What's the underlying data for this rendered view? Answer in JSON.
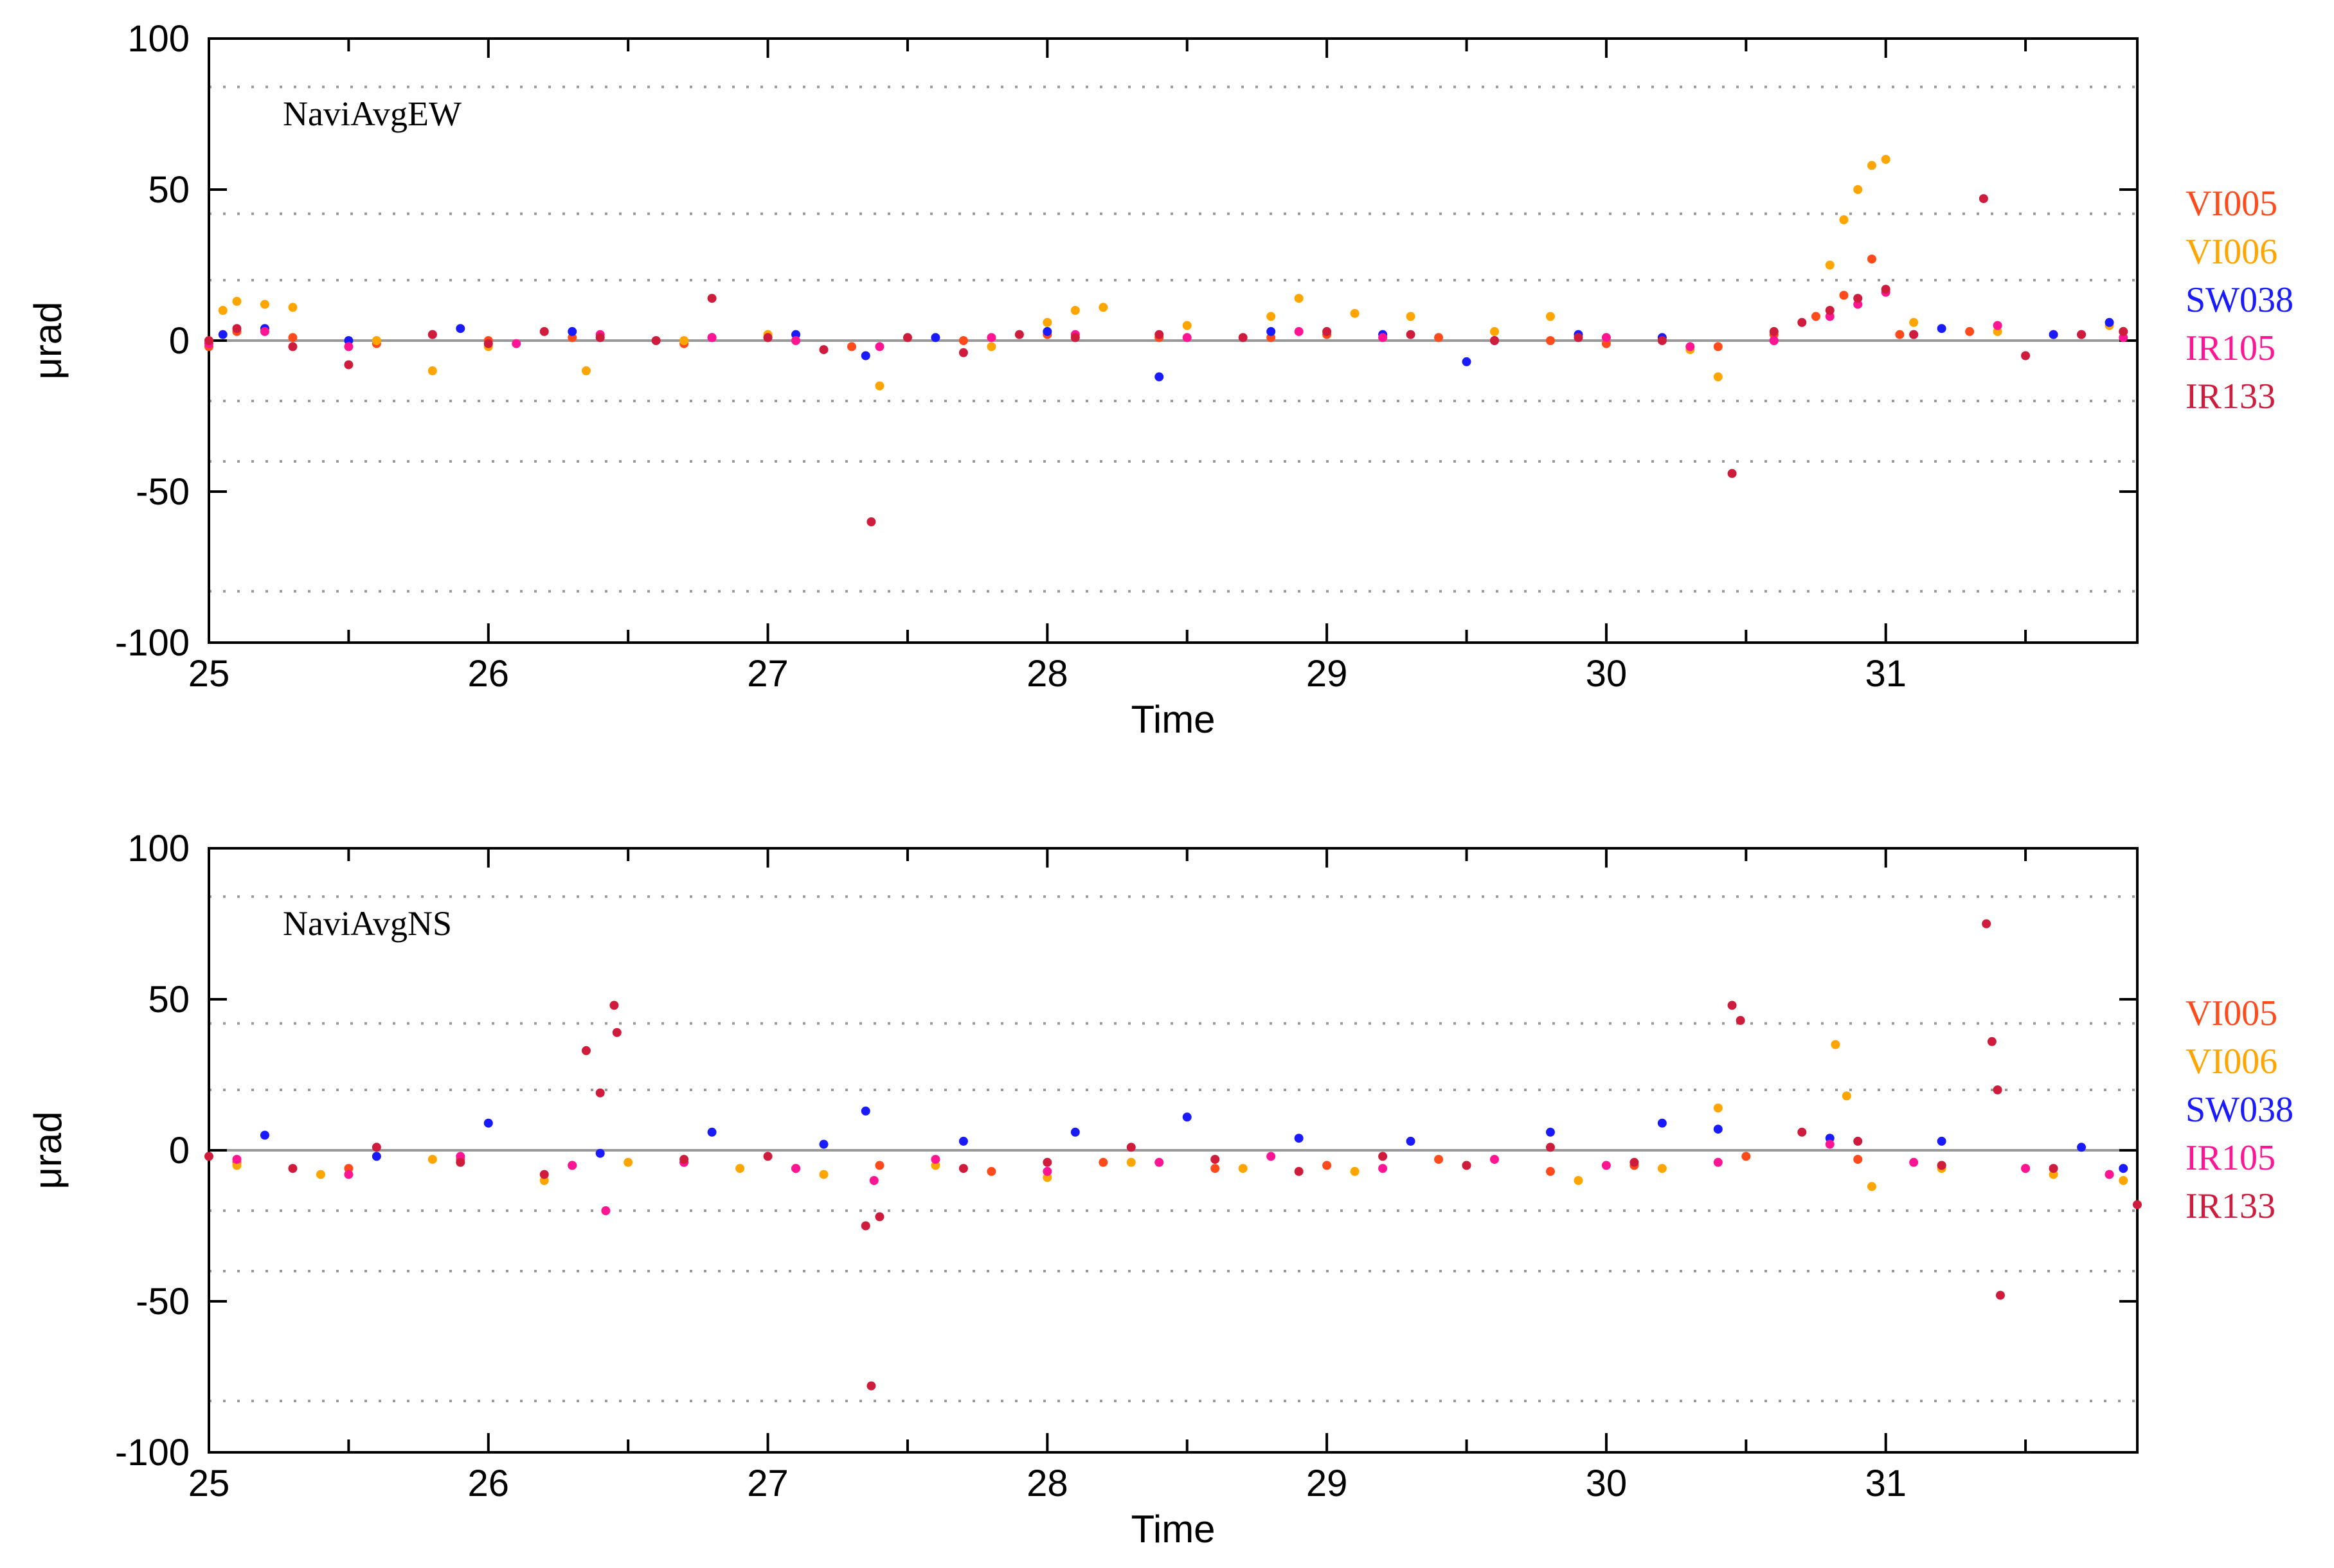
{
  "colors": {
    "VI005": "#ff4a1c",
    "VI006": "#ffa500",
    "SW038": "#1a1aff",
    "IR105": "#ff1493",
    "IR133": "#d01c3c",
    "zero_line": "#999999",
    "grid": "#999999"
  },
  "chart_data": [
    {
      "type": "scatter",
      "title": "NaviAvgEW",
      "xlabel": "Time",
      "ylabel": "μrad",
      "xlim": [
        25,
        31.9
      ],
      "ylim": [
        -100,
        100
      ],
      "xticks": [
        "25",
        "26",
        "27",
        "28",
        "29",
        "30",
        "31"
      ],
      "yticks": [
        "100",
        "50",
        "0",
        "-50",
        "-100"
      ],
      "grid": "dotted horizontal",
      "legend": [
        "VI005",
        "VI006",
        "SW038",
        "IR105",
        "IR133"
      ],
      "legend_position": "right",
      "series": [
        {
          "name": "VI005",
          "x": [
            25.0,
            25.1,
            25.3,
            25.6,
            26.0,
            26.3,
            26.7,
            27.0,
            27.3,
            27.7,
            28.0,
            28.4,
            28.8,
            29.0,
            29.4,
            29.8,
            30.0,
            30.4,
            30.6,
            30.75,
            30.85,
            30.95,
            31.05,
            31.3,
            31.6,
            31.85
          ],
          "y": [
            -2,
            3,
            1,
            -1,
            0,
            1,
            -1,
            1,
            -2,
            0,
            2,
            1,
            1,
            2,
            1,
            0,
            -1,
            -2,
            2,
            8,
            15,
            27,
            2,
            3,
            2,
            3
          ]
        },
        {
          "name": "VI006",
          "x": [
            25.05,
            25.1,
            25.2,
            25.3,
            25.6,
            25.8,
            26.0,
            26.35,
            26.7,
            27.0,
            27.4,
            27.8,
            28.0,
            28.1,
            28.2,
            28.5,
            28.8,
            28.9,
            29.1,
            29.3,
            29.6,
            29.8,
            30.0,
            30.3,
            30.4,
            30.8,
            30.85,
            30.9,
            30.95,
            31.0,
            31.1,
            31.4,
            31.8
          ],
          "y": [
            10,
            13,
            12,
            11,
            0,
            -10,
            -2,
            -10,
            0,
            2,
            -15,
            -2,
            6,
            10,
            11,
            5,
            8,
            14,
            9,
            8,
            3,
            8,
            1,
            -3,
            -12,
            25,
            40,
            50,
            58,
            60,
            6,
            3,
            5
          ]
        },
        {
          "name": "SW038",
          "x": [
            25.05,
            25.2,
            25.5,
            25.9,
            26.3,
            26.8,
            27.1,
            27.35,
            27.6,
            28.0,
            28.4,
            28.8,
            29.2,
            29.5,
            29.9,
            30.2,
            30.6,
            31.2,
            31.6,
            31.8
          ],
          "y": [
            2,
            4,
            0,
            4,
            3,
            1,
            2,
            -5,
            1,
            3,
            -12,
            3,
            2,
            -7,
            2,
            1,
            0,
            4,
            2,
            6
          ]
        },
        {
          "name": "IR105",
          "x": [
            25.0,
            25.2,
            25.5,
            25.8,
            26.1,
            26.4,
            26.8,
            27.1,
            27.4,
            27.8,
            28.1,
            28.5,
            28.9,
            29.2,
            29.6,
            30.0,
            30.3,
            30.6,
            30.8,
            30.9,
            31.0,
            31.1,
            31.4,
            31.7,
            31.85
          ],
          "y": [
            -1,
            3,
            -2,
            2,
            -1,
            2,
            1,
            0,
            -2,
            1,
            2,
            1,
            3,
            1,
            0,
            1,
            -2,
            0,
            8,
            12,
            16,
            2,
            5,
            2,
            1
          ]
        },
        {
          "name": "IR133",
          "x": [
            25.0,
            25.1,
            25.3,
            25.5,
            25.8,
            26.0,
            26.2,
            26.4,
            26.6,
            26.8,
            27.0,
            27.2,
            27.37,
            27.5,
            27.7,
            27.9,
            28.1,
            28.4,
            28.7,
            29.0,
            29.3,
            29.6,
            29.9,
            30.2,
            30.45,
            30.6,
            30.7,
            30.8,
            30.9,
            31.0,
            31.1,
            31.35,
            31.5,
            31.7,
            31.85
          ],
          "y": [
            0,
            4,
            -2,
            -8,
            2,
            -1,
            3,
            1,
            0,
            14,
            1,
            -3,
            -60,
            1,
            -4,
            2,
            1,
            2,
            1,
            3,
            2,
            0,
            1,
            0,
            -44,
            3,
            6,
            10,
            14,
            17,
            2,
            47,
            -5,
            2,
            3
          ]
        }
      ]
    },
    {
      "type": "scatter",
      "title": "NaviAvgNS",
      "xlabel": "Time",
      "ylabel": "μrad",
      "xlim": [
        25,
        31.9
      ],
      "ylim": [
        -100,
        100
      ],
      "xticks": [
        "25",
        "26",
        "27",
        "28",
        "29",
        "30",
        "31"
      ],
      "yticks": [
        "100",
        "50",
        "0",
        "-50",
        "-100"
      ],
      "grid": "dotted horizontal",
      "legend": [
        "VI005",
        "VI006",
        "SW038",
        "IR105",
        "IR133"
      ],
      "legend_position": "right",
      "series": [
        {
          "name": "VI005",
          "x": [
            25.1,
            25.5,
            25.9,
            26.3,
            26.7,
            27.1,
            27.4,
            27.8,
            28.2,
            28.6,
            29.0,
            29.4,
            29.8,
            30.1,
            30.5,
            30.9,
            31.2,
            31.5,
            31.8
          ],
          "y": [
            -4,
            -6,
            -3,
            -5,
            -4,
            -6,
            -5,
            -7,
            -4,
            -6,
            -5,
            -3,
            -7,
            -5,
            -2,
            -3,
            -5,
            -6,
            -8
          ]
        },
        {
          "name": "VI006",
          "x": [
            25.1,
            25.4,
            25.8,
            26.2,
            26.5,
            26.9,
            27.2,
            27.6,
            28.0,
            28.3,
            28.7,
            29.1,
            29.5,
            29.9,
            30.2,
            30.4,
            30.82,
            30.86,
            30.95,
            31.2,
            31.6,
            31.85
          ],
          "y": [
            -5,
            -8,
            -3,
            -10,
            -4,
            -6,
            -8,
            -5,
            -9,
            -4,
            -6,
            -7,
            -5,
            -10,
            -6,
            14,
            35,
            18,
            -12,
            -6,
            -8,
            -10
          ]
        },
        {
          "name": "SW038",
          "x": [
            25.2,
            25.6,
            26.0,
            26.4,
            26.8,
            27.2,
            27.35,
            27.7,
            28.1,
            28.5,
            28.9,
            29.3,
            29.8,
            30.2,
            30.4,
            30.8,
            31.2,
            31.7,
            31.85
          ],
          "y": [
            5,
            -2,
            9,
            -1,
            6,
            2,
            13,
            3,
            6,
            11,
            4,
            3,
            6,
            9,
            7,
            4,
            3,
            1,
            -6
          ]
        },
        {
          "name": "IR105",
          "x": [
            25.1,
            25.5,
            25.9,
            26.3,
            26.42,
            26.7,
            27.1,
            27.38,
            27.6,
            28.0,
            28.4,
            28.8,
            29.2,
            29.6,
            30.0,
            30.4,
            30.8,
            31.1,
            31.5,
            31.8
          ],
          "y": [
            -3,
            -8,
            -2,
            -5,
            -20,
            -4,
            -6,
            -10,
            -3,
            -7,
            -4,
            -2,
            -6,
            -3,
            -5,
            -4,
            2,
            -4,
            -6,
            -8
          ]
        },
        {
          "name": "IR133",
          "x": [
            25.0,
            25.3,
            25.6,
            25.9,
            26.2,
            26.35,
            26.4,
            26.45,
            26.46,
            26.7,
            27.0,
            27.35,
            27.37,
            27.4,
            27.7,
            28.0,
            28.3,
            28.6,
            28.9,
            29.2,
            29.5,
            29.8,
            30.1,
            30.45,
            30.48,
            30.7,
            30.9,
            31.2,
            31.36,
            31.38,
            31.4,
            31.41,
            31.6,
            31.9
          ],
          "y": [
            -2,
            -6,
            1,
            -4,
            -8,
            33,
            19,
            48,
            39,
            -3,
            -2,
            -25,
            -78,
            -22,
            -6,
            -4,
            1,
            -3,
            -7,
            -2,
            -5,
            1,
            -4,
            48,
            43,
            6,
            3,
            -5,
            75,
            36,
            20,
            -48,
            -6,
            -18
          ]
        }
      ]
    }
  ]
}
